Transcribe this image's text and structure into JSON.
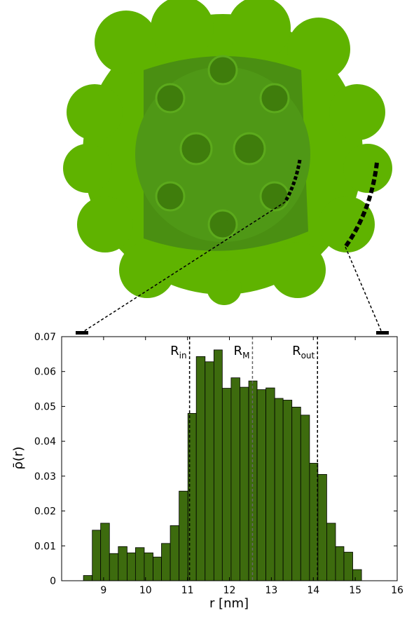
{
  "chart_data": {
    "type": "histogram",
    "xlabel": "r [nm]",
    "ylabel": "ρ̄(r)",
    "bins": [
      8.52,
      8.73,
      8.93,
      9.14,
      9.35,
      9.56,
      9.76,
      9.97,
      10.18,
      10.38,
      10.59,
      10.8,
      11.01,
      11.21,
      11.42,
      11.63,
      11.83,
      12.04,
      12.25,
      12.46,
      12.66,
      12.87,
      13.08,
      13.28,
      13.49,
      13.7,
      13.91,
      14.11,
      14.32,
      14.53,
      14.73,
      14.94,
      15.15
    ],
    "values": [
      0.0015,
      0.0145,
      0.0165,
      0.0078,
      0.0098,
      0.008,
      0.0095,
      0.008,
      0.0068,
      0.0107,
      0.0158,
      0.0257,
      0.048,
      0.0643,
      0.0628,
      0.0662,
      0.0552,
      0.0582,
      0.0555,
      0.0573,
      0.0548,
      0.0553,
      0.0523,
      0.0518,
      0.0498,
      0.0475,
      0.0337,
      0.0305,
      0.0165,
      0.0098,
      0.0082,
      0.0032
    ],
    "color": "#3d6b0e",
    "xlim": [
      8,
      16
    ],
    "ylim": [
      0,
      0.07
    ],
    "xticks": [
      9,
      10,
      11,
      12,
      13,
      14,
      15,
      16
    ],
    "yticks": [
      0,
      0.01,
      0.02,
      0.03,
      0.04,
      0.05,
      0.06,
      0.07
    ],
    "annotations": [
      {
        "label": "R",
        "sub": "in",
        "x": 11.05,
        "color": "#000000"
      },
      {
        "label": "R",
        "sub": "M",
        "x": 12.55,
        "color": "#666666"
      },
      {
        "label": "R",
        "sub": "out",
        "x": 14.1,
        "color": "#000000"
      }
    ]
  }
}
